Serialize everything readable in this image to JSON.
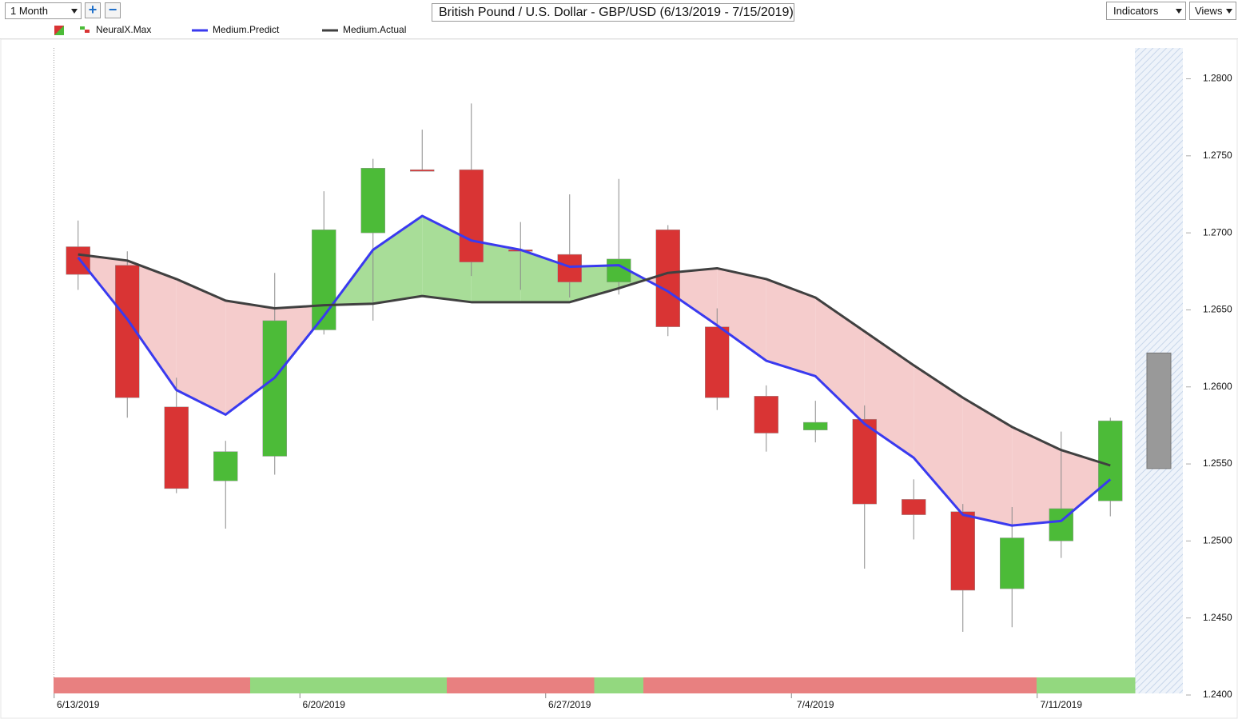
{
  "ui": {
    "period": "1 Month",
    "indicators": "Indicators",
    "views": "Views"
  },
  "chart_data": {
    "type": "candlestick",
    "title": "British Pound / U.S. Dollar - GBP/USD (6/13/2019 - 7/15/2019)",
    "categories": [
      "6/13/2019",
      null,
      null,
      null,
      null,
      "6/20/2019",
      null,
      null,
      null,
      null,
      "6/27/2019",
      null,
      null,
      null,
      null,
      "7/4/2019",
      null,
      null,
      null,
      null,
      "7/11/2019",
      null
    ],
    "open": [
      1.2691,
      1.2679,
      1.2587,
      1.2539,
      1.2555,
      1.2637,
      1.27,
      1.2741,
      1.2741,
      1.2689,
      1.2686,
      1.2668,
      1.2702,
      1.2639,
      1.2594,
      1.2572,
      1.2579,
      1.2527,
      1.2519,
      1.2469,
      1.25,
      1.2526
    ],
    "high": [
      1.2708,
      1.2688,
      1.2606,
      1.2565,
      1.2674,
      1.2727,
      1.2748,
      1.2767,
      1.2784,
      1.2707,
      1.2725,
      1.2735,
      1.2705,
      1.2651,
      1.2601,
      1.2591,
      1.2588,
      1.254,
      1.2524,
      1.2522,
      1.2571,
      1.258
    ],
    "low": [
      1.2663,
      1.258,
      1.2531,
      1.2508,
      1.2543,
      1.2634,
      1.2643,
      1.274,
      1.2672,
      1.2663,
      1.2658,
      1.266,
      1.2633,
      1.2585,
      1.2558,
      1.2564,
      1.2482,
      1.2501,
      1.2441,
      1.2444,
      1.2489,
      1.2516
    ],
    "close": [
      1.2673,
      1.2593,
      1.2534,
      1.2558,
      1.2643,
      1.2702,
      1.2742,
      1.274,
      1.2681,
      1.2688,
      1.2668,
      1.2683,
      1.2639,
      1.2593,
      1.257,
      1.2577,
      1.2524,
      1.2517,
      1.2468,
      1.2502,
      1.2521,
      1.2578
    ],
    "up_color": "#4cbb38",
    "down_color": "#d93434",
    "series": [
      {
        "name": "Medium.Predict",
        "color": "#3a3aef",
        "values": [
          1.2684,
          1.2644,
          1.2598,
          1.2582,
          1.2606,
          1.2646,
          1.2689,
          1.2711,
          1.2695,
          1.2689,
          1.2678,
          1.2679,
          1.2662,
          1.264,
          1.2617,
          1.2607,
          1.2576,
          1.2554,
          1.2517,
          1.251,
          1.2513,
          1.254
        ]
      },
      {
        "name": "Medium.Actual",
        "color": "#404040",
        "values": [
          1.2686,
          1.2682,
          1.267,
          1.2656,
          1.2651,
          1.2653,
          1.2654,
          1.2659,
          1.2655,
          1.2655,
          1.2655,
          1.2664,
          1.2674,
          1.2677,
          1.267,
          1.2658,
          1.2636,
          1.2614,
          1.2593,
          1.2574,
          1.2559,
          1.2549
        ]
      }
    ],
    "signal_name": "NeuralX.Max",
    "signals": [
      -1,
      -1,
      -1,
      -1,
      1,
      1,
      1,
      1,
      -1,
      -1,
      -1,
      1,
      -1,
      -1,
      -1,
      -1,
      -1,
      -1,
      -1,
      -1,
      1,
      1
    ],
    "signal_colors": {
      "up": "#93d87f",
      "down": "#e88080"
    },
    "spread_colors": {
      "up": "#a8dd98",
      "down": "#f5cccc"
    },
    "forecast": {
      "low": 1.2547,
      "high": 1.2622,
      "color": "#999999"
    },
    "ylim": [
      1.24,
      1.282
    ],
    "yticks": [
      {
        "value": 1.24,
        "label": "1.2400"
      },
      {
        "value": 1.245,
        "label": "1.2450"
      },
      {
        "value": 1.25,
        "label": "1.2500"
      },
      {
        "value": 1.255,
        "label": "1.2550"
      },
      {
        "value": 1.26,
        "label": "1.2600"
      },
      {
        "value": 1.265,
        "label": "1.2650"
      },
      {
        "value": 1.27,
        "label": "1.2700"
      },
      {
        "value": 1.275,
        "label": "1.2750"
      },
      {
        "value": 1.28,
        "label": "1.2800"
      }
    ]
  }
}
